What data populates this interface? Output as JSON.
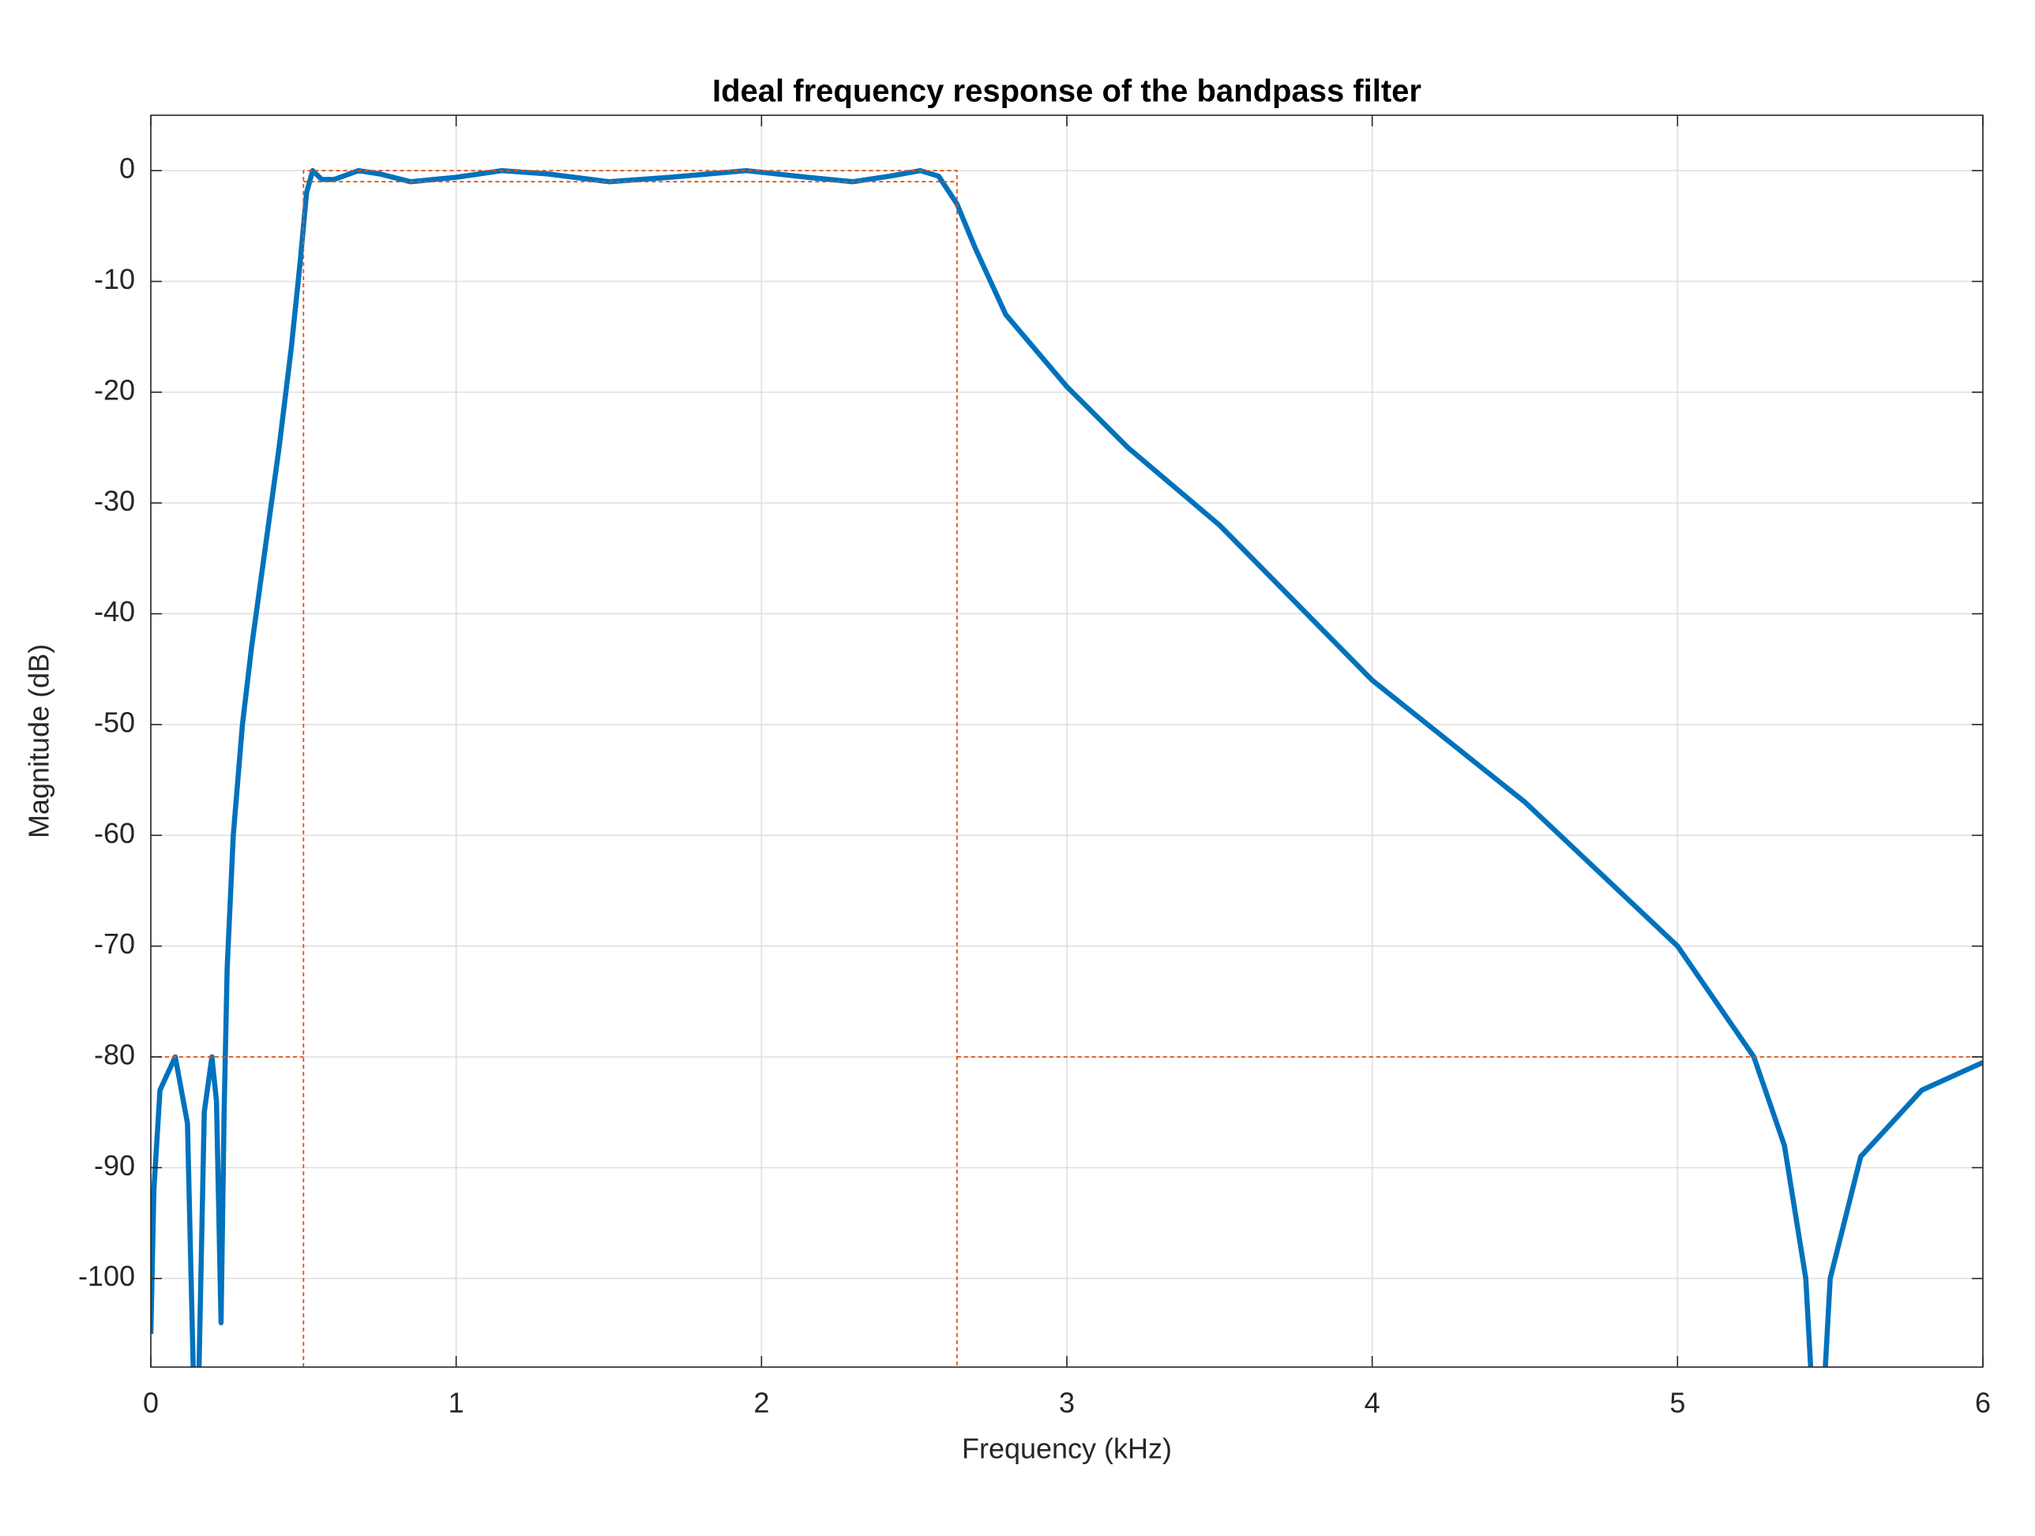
{
  "chart_data": {
    "type": "line",
    "title": "Ideal frequency response of the bandpass filter",
    "x_label": "Frequency (kHz)",
    "y_label": "Magnitude (dB)",
    "xlim": [
      0,
      6
    ],
    "xticks": [
      0,
      1,
      2,
      3,
      4,
      5,
      6
    ],
    "ylim": [
      -108,
      5
    ],
    "yticks": [
      0,
      -10,
      -20,
      -30,
      -40,
      -50,
      -60,
      -70,
      -80,
      -90,
      -100
    ],
    "grid": true,
    "series": [
      {
        "color": "#0072bd",
        "line_style": "solid",
        "x": [
          0,
          0.01,
          0.03,
          0.08,
          0.12,
          0.149,
          0.175,
          0.2,
          0.215,
          0.23,
          0.24,
          0.25,
          0.27,
          0.3,
          0.33,
          0.37,
          0.42,
          0.46,
          0.49,
          0.51,
          0.53,
          0.56,
          0.6,
          0.68,
          0.75,
          0.85,
          1.0,
          1.15,
          1.3,
          1.5,
          1.7,
          1.95,
          2.15,
          2.3,
          2.42,
          2.52,
          2.58,
          2.64,
          2.7,
          2.8,
          3.0,
          3.2,
          3.5,
          4.0,
          4.5,
          5.0,
          5.25,
          5.35,
          5.42,
          5.46,
          5.5,
          5.6,
          5.8,
          6.0
        ],
        "values": [
          -105,
          -92,
          -83,
          -80,
          -86,
          -120,
          -85,
          -80,
          -84,
          -104,
          -85,
          -72,
          -60,
          -50,
          -43,
          -35,
          -25,
          -16,
          -8,
          -2,
          0,
          -0.8,
          -0.8,
          0,
          -0.3,
          -1,
          -0.6,
          0,
          -0.3,
          -1,
          -0.6,
          0,
          -0.6,
          -1,
          -0.5,
          0,
          -0.5,
          -3,
          -7,
          -13,
          -19.5,
          -25,
          -32,
          -46,
          -57,
          -70,
          -80,
          -88,
          -100,
          -120,
          -100,
          -89,
          -83,
          -80.5
        ]
      },
      {
        "color": "#d95319",
        "line_style": "dashed",
        "x": [
          0,
          0.5,
          null,
          0.5,
          0.5,
          2.64,
          2.64,
          null,
          0.5,
          2.64,
          null,
          2.64,
          6
        ],
        "values": [
          -80,
          -80,
          null,
          -108,
          0,
          0,
          -108,
          null,
          -1,
          -1,
          null,
          -80,
          -80
        ]
      }
    ]
  }
}
